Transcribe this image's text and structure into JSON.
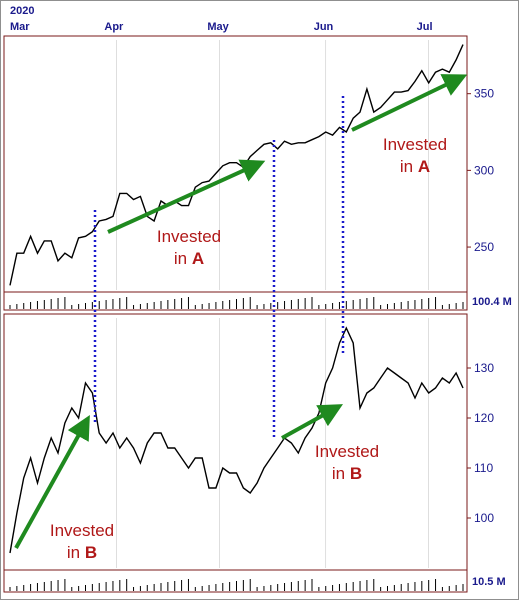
{
  "chart_data": [
    {
      "type": "line",
      "panel": "top",
      "x_axis": {
        "year_label": "2020",
        "months": [
          {
            "label": "Mar",
            "day": 0
          },
          {
            "label": "Apr",
            "day": 31
          },
          {
            "label": "May",
            "day": 61
          },
          {
            "label": "Jun",
            "day": 92
          },
          {
            "label": "Jul",
            "day": 122
          }
        ]
      },
      "ylim": [
        222,
        385
      ],
      "yticks": [
        250,
        300,
        350
      ],
      "volume_label": "100.4 M",
      "series": [
        {
          "x": [
            0,
            2,
            4,
            6,
            8,
            10,
            12,
            14,
            16,
            18,
            20,
            22,
            24,
            26,
            28,
            30,
            32,
            34,
            36,
            38,
            40,
            42,
            44,
            46,
            48,
            50,
            52,
            54,
            56,
            58,
            60,
            62,
            64,
            66,
            68,
            70,
            72,
            74,
            76,
            78,
            80,
            82,
            84,
            86,
            88,
            90,
            92,
            94,
            96,
            98,
            100,
            102,
            104,
            106,
            108,
            110,
            112,
            114,
            116,
            118,
            120,
            122,
            124,
            126,
            128,
            130,
            132
          ],
          "values": [
            225,
            246,
            246,
            257,
            246,
            254,
            254,
            241,
            246,
            243,
            256,
            257,
            260,
            267,
            268,
            270,
            285,
            285,
            281,
            283,
            270,
            267,
            280,
            277,
            280,
            277,
            277,
            289,
            292,
            293,
            298,
            303,
            305,
            305,
            302,
            309,
            313,
            317,
            318,
            314,
            319,
            317,
            318,
            318,
            320,
            322,
            325,
            323,
            328,
            325,
            334,
            338,
            353,
            338,
            341,
            346,
            351,
            351,
            352,
            358,
            365,
            357,
            364,
            366,
            364,
            372,
            382
          ]
        }
      ],
      "annotations": [
        {
          "text_1": "Invested",
          "text_2": "in",
          "text_3": "A"
        },
        {
          "text_1": "Invested",
          "text_2": "in",
          "text_3": "A"
        }
      ]
    },
    {
      "type": "line",
      "panel": "bottom",
      "ylim": [
        90,
        140
      ],
      "yticks": [
        100,
        110,
        120,
        130
      ],
      "volume_label": "10.5 M",
      "series": [
        {
          "x": [
            0,
            2,
            4,
            6,
            8,
            10,
            12,
            14,
            16,
            18,
            20,
            22,
            24,
            26,
            28,
            30,
            32,
            34,
            36,
            38,
            40,
            42,
            44,
            46,
            48,
            50,
            52,
            54,
            56,
            58,
            60,
            62,
            64,
            66,
            68,
            70,
            72,
            74,
            76,
            78,
            80,
            82,
            84,
            86,
            88,
            90,
            92,
            94,
            96,
            98,
            100,
            102,
            104,
            106,
            108,
            110,
            112,
            114,
            116,
            118,
            120,
            122,
            124,
            126,
            128,
            130,
            132
          ],
          "values": [
            93,
            101,
            108,
            112,
            107,
            112,
            116,
            113,
            119,
            122,
            120,
            127,
            125,
            117,
            115,
            117,
            114,
            116,
            114,
            111,
            115,
            117,
            117,
            114,
            114,
            112,
            110,
            112,
            112,
            106,
            106,
            110,
            109,
            109,
            106,
            105,
            107,
            110,
            112,
            114,
            116,
            115,
            113,
            116,
            118,
            121,
            127,
            130,
            135,
            138,
            135,
            122,
            125,
            126,
            128,
            130,
            129,
            128,
            127,
            124,
            127,
            125,
            126,
            128,
            127,
            129,
            126
          ]
        }
      ],
      "annotations": [
        {
          "text_1": "Invested",
          "text_2": "in",
          "text_3": "B"
        },
        {
          "text_1": "Invested",
          "text_2": "in",
          "text_3": "B"
        }
      ]
    }
  ],
  "colors": {
    "line": "#000000",
    "frame": "#7a1a1a",
    "axis_text": "#1a1a8c",
    "annotation_text": "#b01818",
    "arrow": "#1f8a1f",
    "connector": "#1a1acc",
    "grid": "#c9c9c9"
  }
}
